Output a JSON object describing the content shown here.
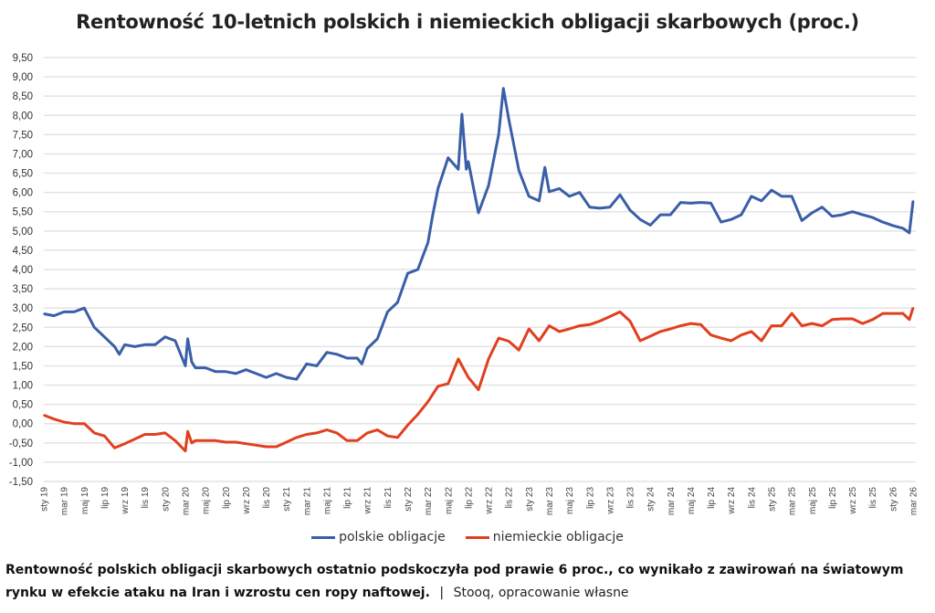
{
  "chart_data": {
    "type": "line",
    "title": "Rentowność 10-letnich polskich i niemieckich obligacji skarbowych (proc.)",
    "xlabel": "",
    "ylabel": "",
    "ylim": [
      -1.5,
      9.5
    ],
    "yticks": [
      "9,50",
      "9,00",
      "8,50",
      "8,00",
      "7,50",
      "7,00",
      "6,50",
      "6,00",
      "5,50",
      "5,00",
      "4,50",
      "4,00",
      "3,50",
      "3,00",
      "2,50",
      "2,00",
      "1,50",
      "1,00",
      "0,50",
      "0,00",
      "-0,50",
      "-1,00",
      "-1,50"
    ],
    "xticks": [
      "sty 19",
      "mar 19",
      "maj 19",
      "lip 19",
      "wrz 19",
      "lis 19",
      "sty 20",
      "mar 20",
      "maj 20",
      "lip 20",
      "wrz 20",
      "lis 20",
      "sty 21",
      "mar 21",
      "maj 21",
      "lip 21",
      "wrz 21",
      "lis 21",
      "sty 22",
      "mar 22",
      "maj 22",
      "lip 22",
      "wrz 22",
      "lis 22",
      "sty 23",
      "mar 23",
      "maj 23",
      "lip 23",
      "wrz 23",
      "lis 23",
      "sty 24",
      "mar 24",
      "maj 24",
      "lip 24",
      "wrz 24",
      "lis 24",
      "sty 25",
      "mar 25",
      "maj 25",
      "lip 25",
      "wrz 25",
      "lis 25",
      "sty 26",
      "mar 26"
    ],
    "xlim": [
      "2019-01",
      "2026-03"
    ],
    "grid": true,
    "legend_position": "bottom",
    "series": [
      {
        "name": "polskie obligacje",
        "color": "#3a5ea8",
        "points": [
          [
            "2019-01",
            2.85
          ],
          [
            "2019-02",
            2.8
          ],
          [
            "2019-03",
            2.9
          ],
          [
            "2019-04",
            2.9
          ],
          [
            "2019-05",
            3.0
          ],
          [
            "2019-06",
            2.5
          ],
          [
            "2019-07",
            2.25
          ],
          [
            "2019-08",
            2.0
          ],
          [
            "2019-08-15",
            1.8
          ],
          [
            "2019-09",
            2.05
          ],
          [
            "2019-10",
            2.0
          ],
          [
            "2019-11",
            2.05
          ],
          [
            "2019-12",
            2.05
          ],
          [
            "2020-01",
            2.25
          ],
          [
            "2020-02",
            2.15
          ],
          [
            "2020-03",
            1.5
          ],
          [
            "2020-03-08",
            2.2
          ],
          [
            "2020-03-20",
            1.6
          ],
          [
            "2020-04",
            1.45
          ],
          [
            "2020-05",
            1.45
          ],
          [
            "2020-06",
            1.35
          ],
          [
            "2020-07",
            1.35
          ],
          [
            "2020-08",
            1.3
          ],
          [
            "2020-09",
            1.4
          ],
          [
            "2020-10",
            1.3
          ],
          [
            "2020-11",
            1.2
          ],
          [
            "2020-12",
            1.3
          ],
          [
            "2021-01",
            1.2
          ],
          [
            "2021-02",
            1.15
          ],
          [
            "2021-03",
            1.55
          ],
          [
            "2021-04",
            1.5
          ],
          [
            "2021-05",
            1.85
          ],
          [
            "2021-06",
            1.8
          ],
          [
            "2021-07",
            1.7
          ],
          [
            "2021-08",
            1.7
          ],
          [
            "2021-08-15",
            1.55
          ],
          [
            "2021-09",
            1.95
          ],
          [
            "2021-10",
            2.2
          ],
          [
            "2021-11",
            2.9
          ],
          [
            "2021-12",
            3.15
          ],
          [
            "2022-01",
            3.9
          ],
          [
            "2022-02",
            4.0
          ],
          [
            "2022-03",
            4.7
          ],
          [
            "2022-03-15",
            5.4
          ],
          [
            "2022-04",
            6.1
          ],
          [
            "2022-05",
            6.9
          ],
          [
            "2022-06",
            6.6
          ],
          [
            "2022-06-12",
            8.03
          ],
          [
            "2022-06-25",
            6.6
          ],
          [
            "2022-07",
            6.8
          ],
          [
            "2022-08",
            5.47
          ],
          [
            "2022-09",
            6.18
          ],
          [
            "2022-10",
            7.5
          ],
          [
            "2022-10-15",
            8.7
          ],
          [
            "2022-11",
            7.9
          ],
          [
            "2022-12",
            6.57
          ],
          [
            "2023-01",
            5.9
          ],
          [
            "2023-02",
            5.78
          ],
          [
            "2023-02-18",
            6.65
          ],
          [
            "2023-03",
            6.02
          ],
          [
            "2023-04",
            6.1
          ],
          [
            "2023-05",
            5.9
          ],
          [
            "2023-06",
            6.0
          ],
          [
            "2023-07",
            5.62
          ],
          [
            "2023-08",
            5.59
          ],
          [
            "2023-09",
            5.62
          ],
          [
            "2023-10",
            5.94
          ],
          [
            "2023-11",
            5.54
          ],
          [
            "2023-12",
            5.3
          ],
          [
            "2024-01",
            5.15
          ],
          [
            "2024-02",
            5.42
          ],
          [
            "2024-03",
            5.42
          ],
          [
            "2024-04",
            5.74
          ],
          [
            "2024-05",
            5.72
          ],
          [
            "2024-06",
            5.74
          ],
          [
            "2024-07",
            5.72
          ],
          [
            "2024-08",
            5.23
          ],
          [
            "2024-09",
            5.3
          ],
          [
            "2024-10",
            5.42
          ],
          [
            "2024-11",
            5.9
          ],
          [
            "2024-12",
            5.78
          ],
          [
            "2025-01",
            6.06
          ],
          [
            "2025-02",
            5.9
          ],
          [
            "2025-03",
            5.9
          ],
          [
            "2025-04",
            5.27
          ],
          [
            "2025-05",
            5.47
          ],
          [
            "2025-06",
            5.62
          ],
          [
            "2025-07",
            5.38
          ],
          [
            "2025-08",
            5.42
          ],
          [
            "2025-09",
            5.5
          ],
          [
            "2025-10",
            5.42
          ],
          [
            "2025-11",
            5.35
          ],
          [
            "2025-12",
            5.23
          ],
          [
            "2026-01",
            5.14
          ],
          [
            "2026-02",
            5.07
          ],
          [
            "2026-02-20",
            4.95
          ],
          [
            "2026-03",
            5.78
          ]
        ]
      },
      {
        "name": "niemieckie obligacje",
        "color": "#e0401f",
        "points": [
          [
            "2019-01",
            0.22
          ],
          [
            "2019-02",
            0.12
          ],
          [
            "2019-03",
            0.04
          ],
          [
            "2019-04",
            0.0
          ],
          [
            "2019-05",
            0.0
          ],
          [
            "2019-06",
            -0.24
          ],
          [
            "2019-07",
            -0.32
          ],
          [
            "2019-08",
            -0.63
          ],
          [
            "2019-09",
            -0.52
          ],
          [
            "2019-10",
            -0.4
          ],
          [
            "2019-11",
            -0.28
          ],
          [
            "2019-12",
            -0.28
          ],
          [
            "2020-01",
            -0.24
          ],
          [
            "2020-02",
            -0.44
          ],
          [
            "2020-03",
            -0.71
          ],
          [
            "2020-03-08",
            -0.2
          ],
          [
            "2020-03-20",
            -0.5
          ],
          [
            "2020-04",
            -0.44
          ],
          [
            "2020-05",
            -0.44
          ],
          [
            "2020-06",
            -0.44
          ],
          [
            "2020-07",
            -0.48
          ],
          [
            "2020-08",
            -0.48
          ],
          [
            "2020-09",
            -0.52
          ],
          [
            "2020-10",
            -0.56
          ],
          [
            "2020-11",
            -0.6
          ],
          [
            "2020-12",
            -0.6
          ],
          [
            "2021-01",
            -0.48
          ],
          [
            "2021-02",
            -0.36
          ],
          [
            "2021-03",
            -0.28
          ],
          [
            "2021-04",
            -0.24
          ],
          [
            "2021-05",
            -0.16
          ],
          [
            "2021-06",
            -0.24
          ],
          [
            "2021-07",
            -0.44
          ],
          [
            "2021-08",
            -0.44
          ],
          [
            "2021-09",
            -0.24
          ],
          [
            "2021-10",
            -0.16
          ],
          [
            "2021-11",
            -0.32
          ],
          [
            "2021-12",
            -0.36
          ],
          [
            "2022-01",
            -0.04
          ],
          [
            "2022-02",
            0.24
          ],
          [
            "2022-03",
            0.57
          ],
          [
            "2022-04",
            0.97
          ],
          [
            "2022-05",
            1.04
          ],
          [
            "2022-06",
            1.68
          ],
          [
            "2022-07",
            1.2
          ],
          [
            "2022-08",
            0.88
          ],
          [
            "2022-09",
            1.68
          ],
          [
            "2022-10",
            2.22
          ],
          [
            "2022-11",
            2.14
          ],
          [
            "2022-12",
            1.91
          ],
          [
            "2023-01",
            2.46
          ],
          [
            "2023-02",
            2.15
          ],
          [
            "2023-03",
            2.54
          ],
          [
            "2023-04",
            2.39
          ],
          [
            "2023-05",
            2.46
          ],
          [
            "2023-06",
            2.54
          ],
          [
            "2023-07",
            2.57
          ],
          [
            "2023-08",
            2.66
          ],
          [
            "2023-09",
            2.78
          ],
          [
            "2023-10",
            2.9
          ],
          [
            "2023-11",
            2.66
          ],
          [
            "2023-12",
            2.15
          ],
          [
            "2024-01",
            2.27
          ],
          [
            "2024-02",
            2.39
          ],
          [
            "2024-03",
            2.46
          ],
          [
            "2024-04",
            2.54
          ],
          [
            "2024-05",
            2.6
          ],
          [
            "2024-06",
            2.57
          ],
          [
            "2024-07",
            2.3
          ],
          [
            "2024-08",
            2.22
          ],
          [
            "2024-09",
            2.15
          ],
          [
            "2024-10",
            2.3
          ],
          [
            "2024-11",
            2.39
          ],
          [
            "2024-12",
            2.15
          ],
          [
            "2025-01",
            2.54
          ],
          [
            "2025-02",
            2.54
          ],
          [
            "2025-03",
            2.86
          ],
          [
            "2025-04",
            2.54
          ],
          [
            "2025-05",
            2.6
          ],
          [
            "2025-06",
            2.54
          ],
          [
            "2025-07",
            2.7
          ],
          [
            "2025-08",
            2.72
          ],
          [
            "2025-09",
            2.72
          ],
          [
            "2025-10",
            2.6
          ],
          [
            "2025-11",
            2.7
          ],
          [
            "2025-12",
            2.86
          ],
          [
            "2026-01",
            2.86
          ],
          [
            "2026-02",
            2.86
          ],
          [
            "2026-02-20",
            2.7
          ],
          [
            "2026-03",
            3.01
          ]
        ]
      }
    ]
  },
  "caption": {
    "text": "Rentowność polskich obligacji skarbowych ostatnio podskoczyła pod prawie 6 proc., co wynikało z zawirowań na światowym rynku w efekcie ataku na Iran i wzrostu cen ropy naftowej.",
    "separator": "|",
    "source": "Stooq, opracowanie własne"
  }
}
